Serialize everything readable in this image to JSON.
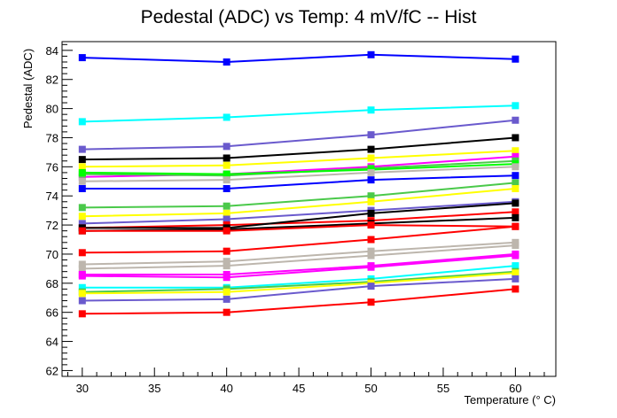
{
  "chart_data": {
    "type": "line",
    "title": "Pedestal (ADC) vs Temp: 4 mV/fC -- Hist",
    "xlabel": "Temperature (° C)",
    "ylabel": "Pedestal (ADC)",
    "xlim": [
      28.6,
      62.8
    ],
    "ylim": [
      61.6,
      84.6
    ],
    "xticks": [
      30,
      35,
      40,
      45,
      50,
      55,
      60
    ],
    "yticks": [
      62,
      64,
      66,
      68,
      70,
      72,
      74,
      76,
      78,
      80,
      82,
      84
    ],
    "grid": false,
    "legend": "none",
    "x": [
      30,
      40,
      50,
      60
    ],
    "series": [
      {
        "color": "#0000ff",
        "values": [
          83.5,
          83.2,
          83.7,
          83.4
        ]
      },
      {
        "color": "#00ffff",
        "values": [
          79.1,
          79.4,
          79.9,
          80.2
        ]
      },
      {
        "color": "#6a5acd",
        "values": [
          77.2,
          77.4,
          78.2,
          79.2
        ]
      },
      {
        "color": "#000000",
        "values": [
          76.5,
          76.6,
          77.2,
          78.0
        ]
      },
      {
        "color": "#ffff00",
        "values": [
          76.0,
          76.1,
          76.6,
          77.1
        ]
      },
      {
        "color": "#ff00ff",
        "values": [
          75.3,
          75.5,
          76.0,
          76.7
        ]
      },
      {
        "color": "#4ac94a",
        "values": [
          75.5,
          75.4,
          75.9,
          76.4
        ]
      },
      {
        "color": "#00ff00",
        "values": [
          75.6,
          75.5,
          75.8,
          76.2
        ]
      },
      {
        "color": "#bdb6ad",
        "values": [
          75.0,
          75.1,
          75.6,
          76.0
        ]
      },
      {
        "color": "#0000ff",
        "values": [
          74.5,
          74.5,
          75.1,
          75.4
        ]
      },
      {
        "color": "#4ac94a",
        "values": [
          73.2,
          73.3,
          74.0,
          74.9
        ]
      },
      {
        "color": "#ffff00",
        "values": [
          72.6,
          72.8,
          73.6,
          74.5
        ]
      },
      {
        "color": "#6a5acd",
        "values": [
          72.1,
          72.4,
          73.0,
          73.6
        ]
      },
      {
        "color": "#ff0000",
        "values": [
          71.8,
          72.0,
          72.3,
          72.9
        ]
      },
      {
        "color": "#000000",
        "values": [
          71.8,
          71.8,
          72.8,
          73.5
        ]
      },
      {
        "color": "#000000",
        "values": [
          71.6,
          71.7,
          72.1,
          72.5
        ]
      },
      {
        "color": "#ff0000",
        "values": [
          71.6,
          71.6,
          72.0,
          71.9
        ]
      },
      {
        "color": "#ff0000",
        "values": [
          70.1,
          70.2,
          71.0,
          71.9
        ]
      },
      {
        "color": "#bdb6ad",
        "values": [
          69.3,
          69.5,
          70.2,
          70.8
        ]
      },
      {
        "color": "#bdb6ad",
        "values": [
          69.0,
          69.2,
          69.9,
          70.6
        ]
      },
      {
        "color": "#ff00ff",
        "values": [
          68.6,
          68.6,
          69.2,
          70.0
        ]
      },
      {
        "color": "#ff00ff",
        "values": [
          68.5,
          68.4,
          69.1,
          69.9
        ]
      },
      {
        "color": "#00ffff",
        "values": [
          67.7,
          67.7,
          68.3,
          69.2
        ]
      },
      {
        "color": "#4ac94a",
        "values": [
          67.4,
          67.6,
          68.1,
          68.8
        ]
      },
      {
        "color": "#ffff00",
        "values": [
          67.3,
          67.4,
          68.0,
          68.7
        ]
      },
      {
        "color": "#6a5acd",
        "values": [
          66.8,
          66.9,
          67.8,
          68.3
        ]
      },
      {
        "color": "#ff0000",
        "values": [
          65.9,
          66.0,
          66.7,
          67.6
        ]
      }
    ]
  }
}
